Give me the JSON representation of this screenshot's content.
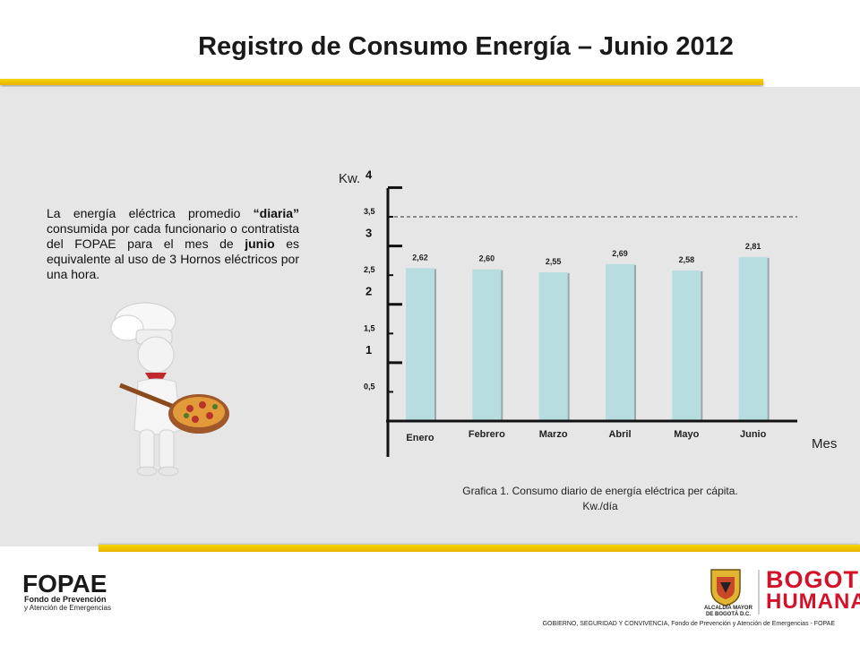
{
  "page": {
    "title": "Registro de Consumo Energía – Junio 2012",
    "description": {
      "part1": "La energía eléctrica promedio ",
      "bold1": "“diaria”",
      "part2": " consumida por cada funcionario o contratista del FOPAE para el mes de ",
      "bold2": "junio",
      "part3": " es equivalente al uso de 3 Hornos eléctricos por una hora."
    },
    "caption_line1": "Grafica 1. Consumo diario de energía eléctrica per cápita.",
    "caption_line2": "Kw./día",
    "footer": {
      "fopae_logo_text": "FOPAE",
      "fopae_line1": "Fondo de Prevención",
      "fopae_line2": "y Atención de Emergencias",
      "alcaldia_line1": "ALCALDÍA MAYOR",
      "alcaldia_line2": "DE BOGOTÁ D.C.",
      "bogota_line1": "BOGOTÁ",
      "bogota_line2": "HUMANA",
      "credit": "GOBIERNO, SEGURIDAD Y CONVIVENCIA, Fondo de Prevención y Atención de Emergencias - FOPAE"
    },
    "colors": {
      "bar_fill": "#b8dde0",
      "accent_yellow": "#f2c400",
      "panel_gray": "#e6e6e6",
      "brand_red": "#d3122a"
    }
  },
  "chart_data": {
    "type": "bar",
    "categories": [
      "Enero",
      "Febrero",
      "Marzo",
      "Abril",
      "Mayo",
      "Junio"
    ],
    "values": [
      2.62,
      2.6,
      2.55,
      2.69,
      2.58,
      2.81
    ],
    "value_labels": [
      "2,62",
      "2,60",
      "2,55",
      "2,69",
      "2,58",
      "2,81"
    ],
    "title": "",
    "xlabel": "Mes",
    "ylabel": "Kw.",
    "ylim": [
      0,
      4
    ],
    "major_ticks": [
      "1",
      "2",
      "3",
      "4"
    ],
    "minor_ticks": [
      "0,5",
      "1,5",
      "2,5",
      "3,5"
    ],
    "reference_line_value": 3.5,
    "grid": false,
    "legend": "none"
  }
}
